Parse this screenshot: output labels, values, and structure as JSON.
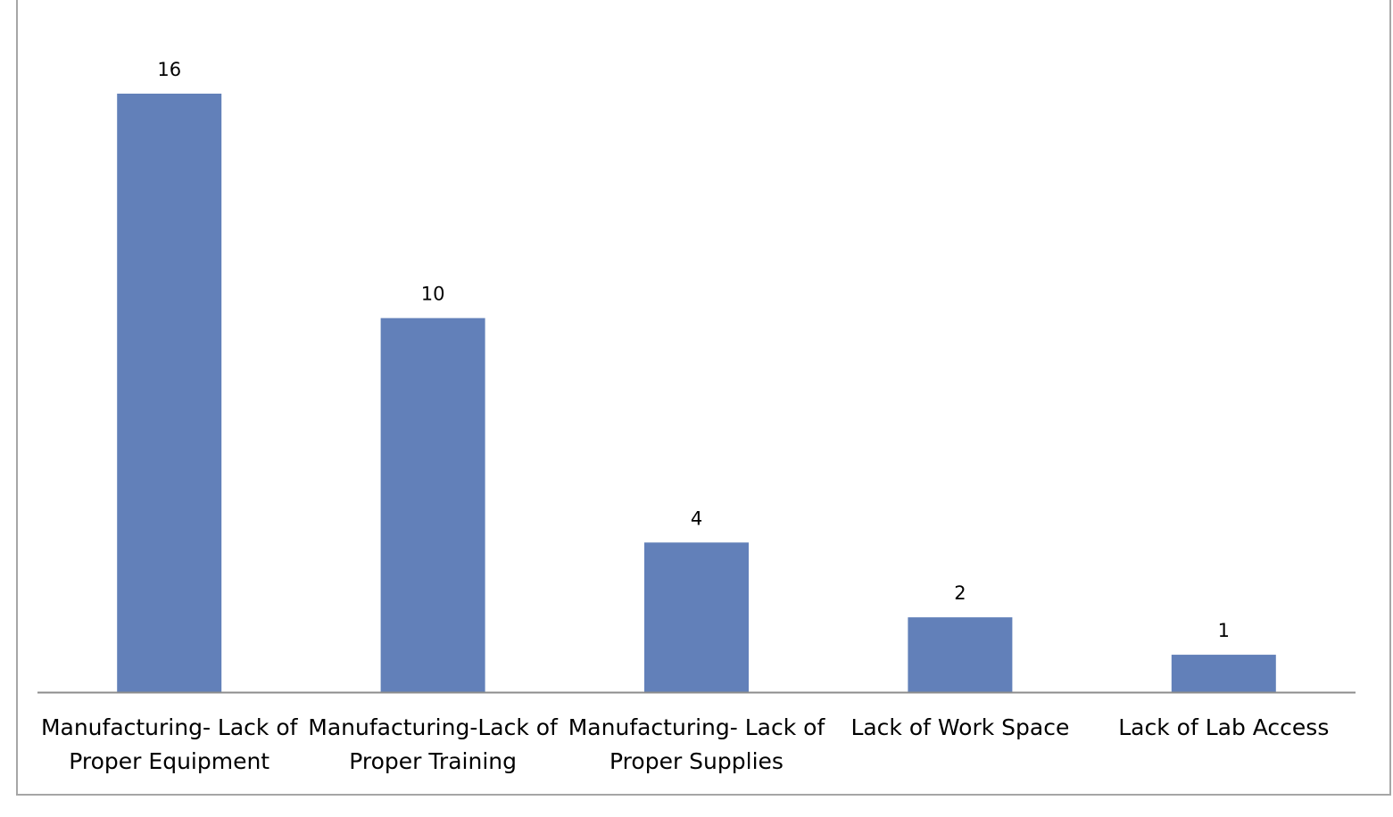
{
  "chart_data": {
    "type": "bar",
    "title": "",
    "xlabel": "",
    "ylabel": "",
    "categories": [
      [
        "Manufacturing- Lack of",
        "Proper Equipment"
      ],
      [
        "Manufacturing-Lack of",
        "Proper Training"
      ],
      [
        "Manufacturing- Lack of",
        "Proper Supplies"
      ],
      [
        "Lack of Work Space"
      ],
      [
        "Lack of Lab Access"
      ]
    ],
    "values": [
      16,
      10,
      4,
      2,
      1
    ],
    "data_labels": [
      "16",
      "10",
      "4",
      "2",
      "1"
    ],
    "ylim": [
      0,
      16
    ],
    "grid": false,
    "legend": "none",
    "colors": {
      "bar": "#6280b9",
      "axis": "#8c8c8c",
      "border": "#a6a6a6"
    }
  }
}
